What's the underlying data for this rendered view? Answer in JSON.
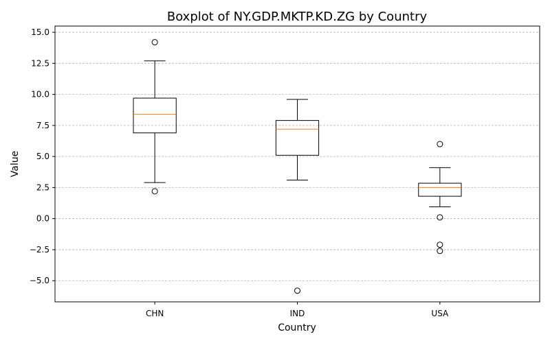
{
  "chart_data": {
    "type": "box",
    "title": "Boxplot of NY.GDP.MKTP.KD.ZG by Country",
    "xlabel": "Country",
    "ylabel": "Value",
    "ylim": [
      -6.7,
      15.5
    ],
    "yticks": [
      -5.0,
      -2.5,
      0.0,
      2.5,
      5.0,
      7.5,
      10.0,
      12.5,
      15.0
    ],
    "ytick_labels": [
      "−5.0",
      "−2.5",
      "0.0",
      "2.5",
      "5.0",
      "7.5",
      "10.0",
      "12.5",
      "15.0"
    ],
    "grid": "y-dashed",
    "categories": [
      "CHN",
      "IND",
      "USA"
    ],
    "boxes": [
      {
        "category": "CHN",
        "whisker_low": 2.9,
        "q1": 6.9,
        "median": 8.4,
        "q3": 9.7,
        "whisker_high": 12.7,
        "outliers": [
          14.2,
          2.2
        ]
      },
      {
        "category": "IND",
        "whisker_low": 3.1,
        "q1": 5.1,
        "median": 7.2,
        "q3": 7.9,
        "whisker_high": 9.6,
        "outliers": [
          -5.8
        ]
      },
      {
        "category": "USA",
        "whisker_low": 0.95,
        "q1": 1.8,
        "median": 2.5,
        "q3": 2.85,
        "whisker_high": 4.1,
        "outliers": [
          6.0,
          0.1,
          -2.1,
          -2.6
        ]
      }
    ],
    "colors": {
      "box": "#000000",
      "median": "#ff7f0e",
      "grid": "#b0b0b0"
    }
  }
}
